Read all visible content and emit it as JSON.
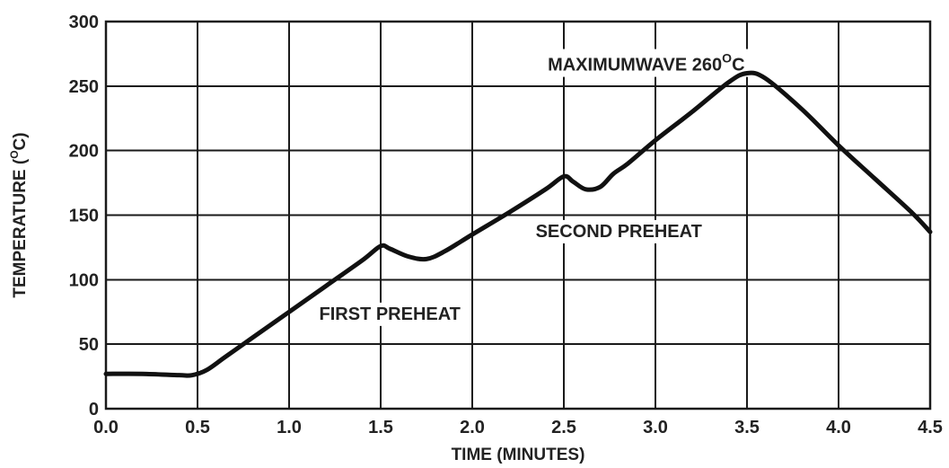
{
  "chart_data": {
    "type": "line",
    "title": "",
    "xlabel": "TIME (MINUTES)",
    "ylabel_main": "TEMPERATURE (",
    "ylabel_sup": "O",
    "ylabel_end": "C)",
    "xlim": [
      0,
      4.5
    ],
    "ylim": [
      0,
      300
    ],
    "grid": true,
    "legend": "none",
    "x_ticks": [
      "0.0",
      "0.5",
      "1.0",
      "1.5",
      "2.0",
      "2.5",
      "3.0",
      "3.5",
      "4.0",
      "4.5"
    ],
    "x_tick_values": [
      0,
      0.5,
      1.0,
      1.5,
      2.0,
      2.5,
      3.0,
      3.5,
      4.0,
      4.5
    ],
    "y_ticks": [
      "0",
      "50",
      "100",
      "150",
      "200",
      "250",
      "300"
    ],
    "y_tick_values": [
      0,
      50,
      100,
      150,
      200,
      250,
      300
    ],
    "series": [
      {
        "x": [
          0.0,
          0.2,
          0.4,
          0.47,
          0.55,
          0.65,
          0.8,
          1.0,
          1.2,
          1.4,
          1.5,
          1.55,
          1.65,
          1.75,
          1.85,
          2.0,
          2.2,
          2.4,
          2.5,
          2.55,
          2.62,
          2.7,
          2.77,
          2.85,
          3.0,
          3.2,
          3.4,
          3.5,
          3.6,
          3.8,
          4.0,
          4.2,
          4.4,
          4.5
        ],
        "y": [
          27,
          27,
          26,
          26,
          30,
          40,
          55,
          75,
          95,
          115,
          126,
          124,
          118,
          116,
          122,
          135,
          152,
          170,
          180,
          176,
          170,
          172,
          182,
          190,
          208,
          230,
          253,
          260,
          256,
          232,
          204,
          178,
          152,
          137
        ],
        "color": "#111111"
      }
    ],
    "annotations": [
      {
        "id": "maximum_wave",
        "text": "MAXIMUMWAVE 260",
        "sup": "O",
        "suffix": "C",
        "x": 2.95,
        "y": 262
      },
      {
        "id": "second_preheat",
        "text": "SECOND PREHEAT",
        "x": 2.8,
        "y": 133
      },
      {
        "id": "first_preheat",
        "text": "FIRST PREHEAT",
        "x": 1.55,
        "y": 69
      }
    ]
  }
}
